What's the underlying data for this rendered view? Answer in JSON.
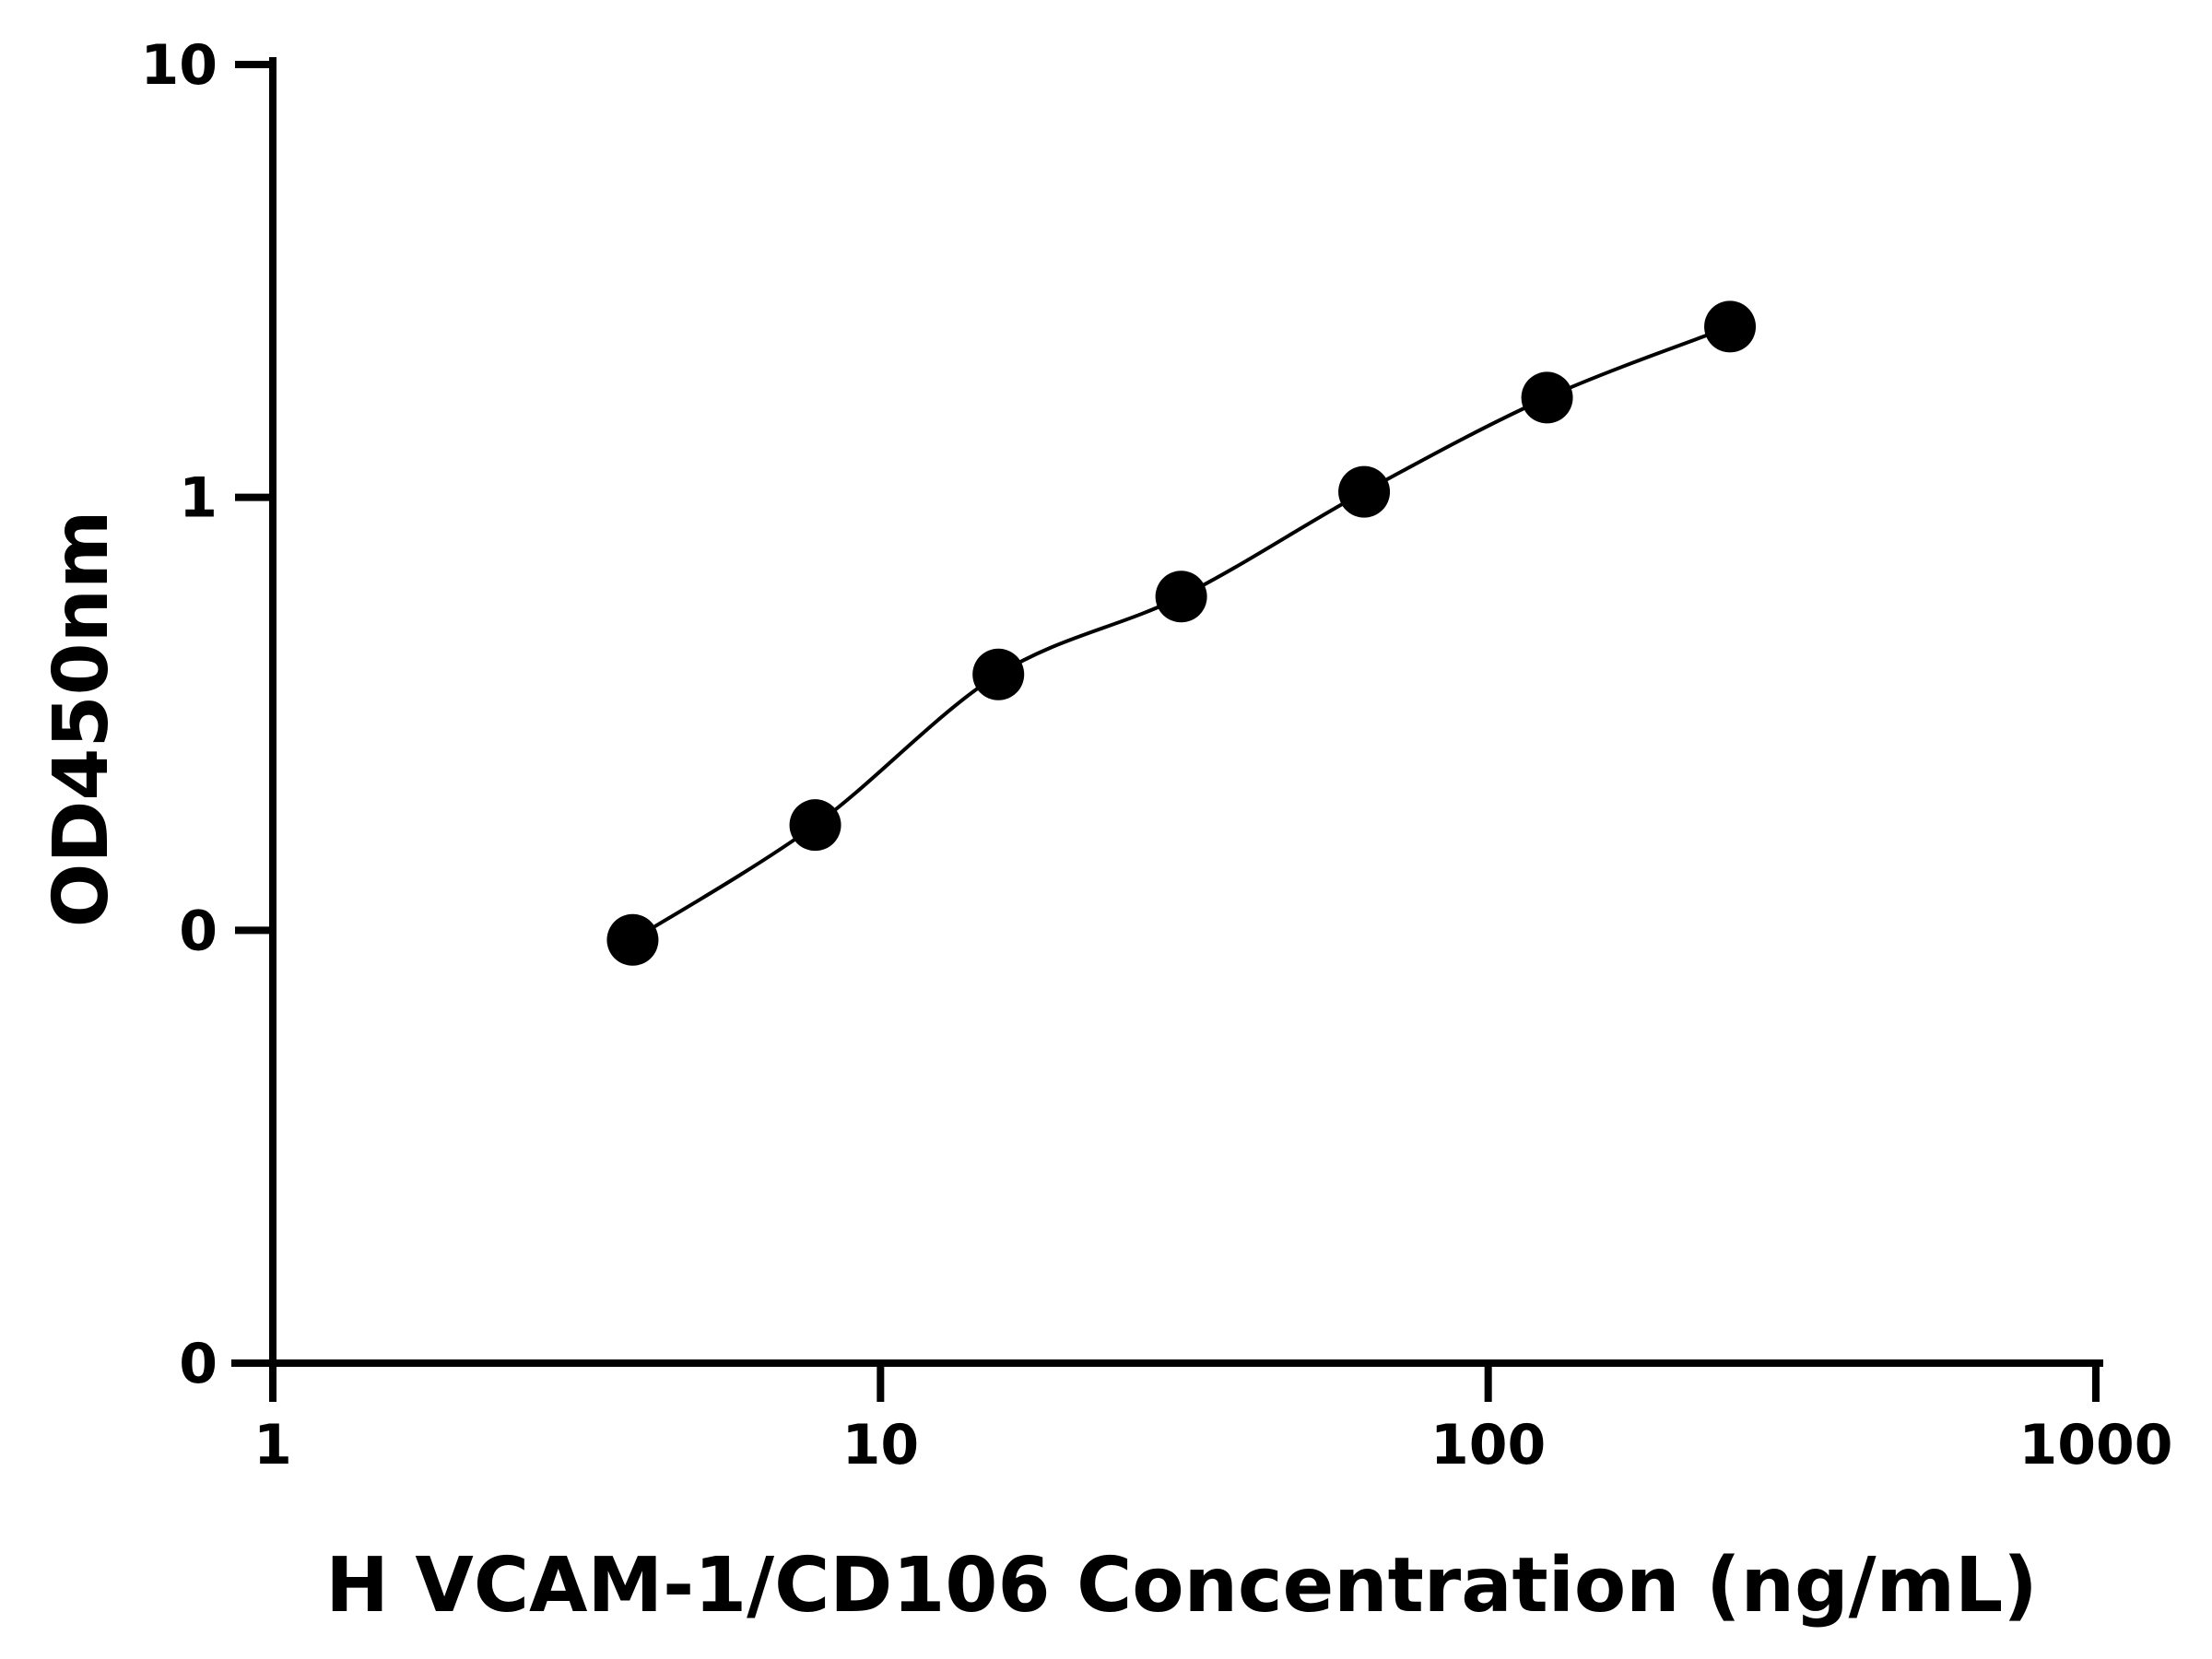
{
  "chart_data": {
    "type": "scatter",
    "xlabel": "H VCAM-1/CD106 Concentration (ng/mL)",
    "ylabel": "OD450nm",
    "x_scale": "log",
    "x_ticks": [
      1,
      10,
      100,
      1000
    ],
    "x_tick_labels": [
      "1",
      "10",
      "100",
      "1000"
    ],
    "y_ticks": [
      0.01,
      0.1,
      1,
      10
    ],
    "y_tick_labels": [
      "0",
      "0",
      "1",
      "10"
    ],
    "y_scale": "log",
    "xlim": [
      1,
      1000
    ],
    "ylim": [
      0.01,
      10
    ],
    "grid": false,
    "series": [
      {
        "x": [
          3.91,
          7.81,
          15.63,
          31.25,
          62.5,
          125,
          250
        ],
        "y": [
          0.095,
          0.175,
          0.39,
          0.59,
          1.03,
          1.7,
          2.48
        ],
        "marker": "circle",
        "color": "#000000",
        "fit_line": true
      }
    ]
  }
}
